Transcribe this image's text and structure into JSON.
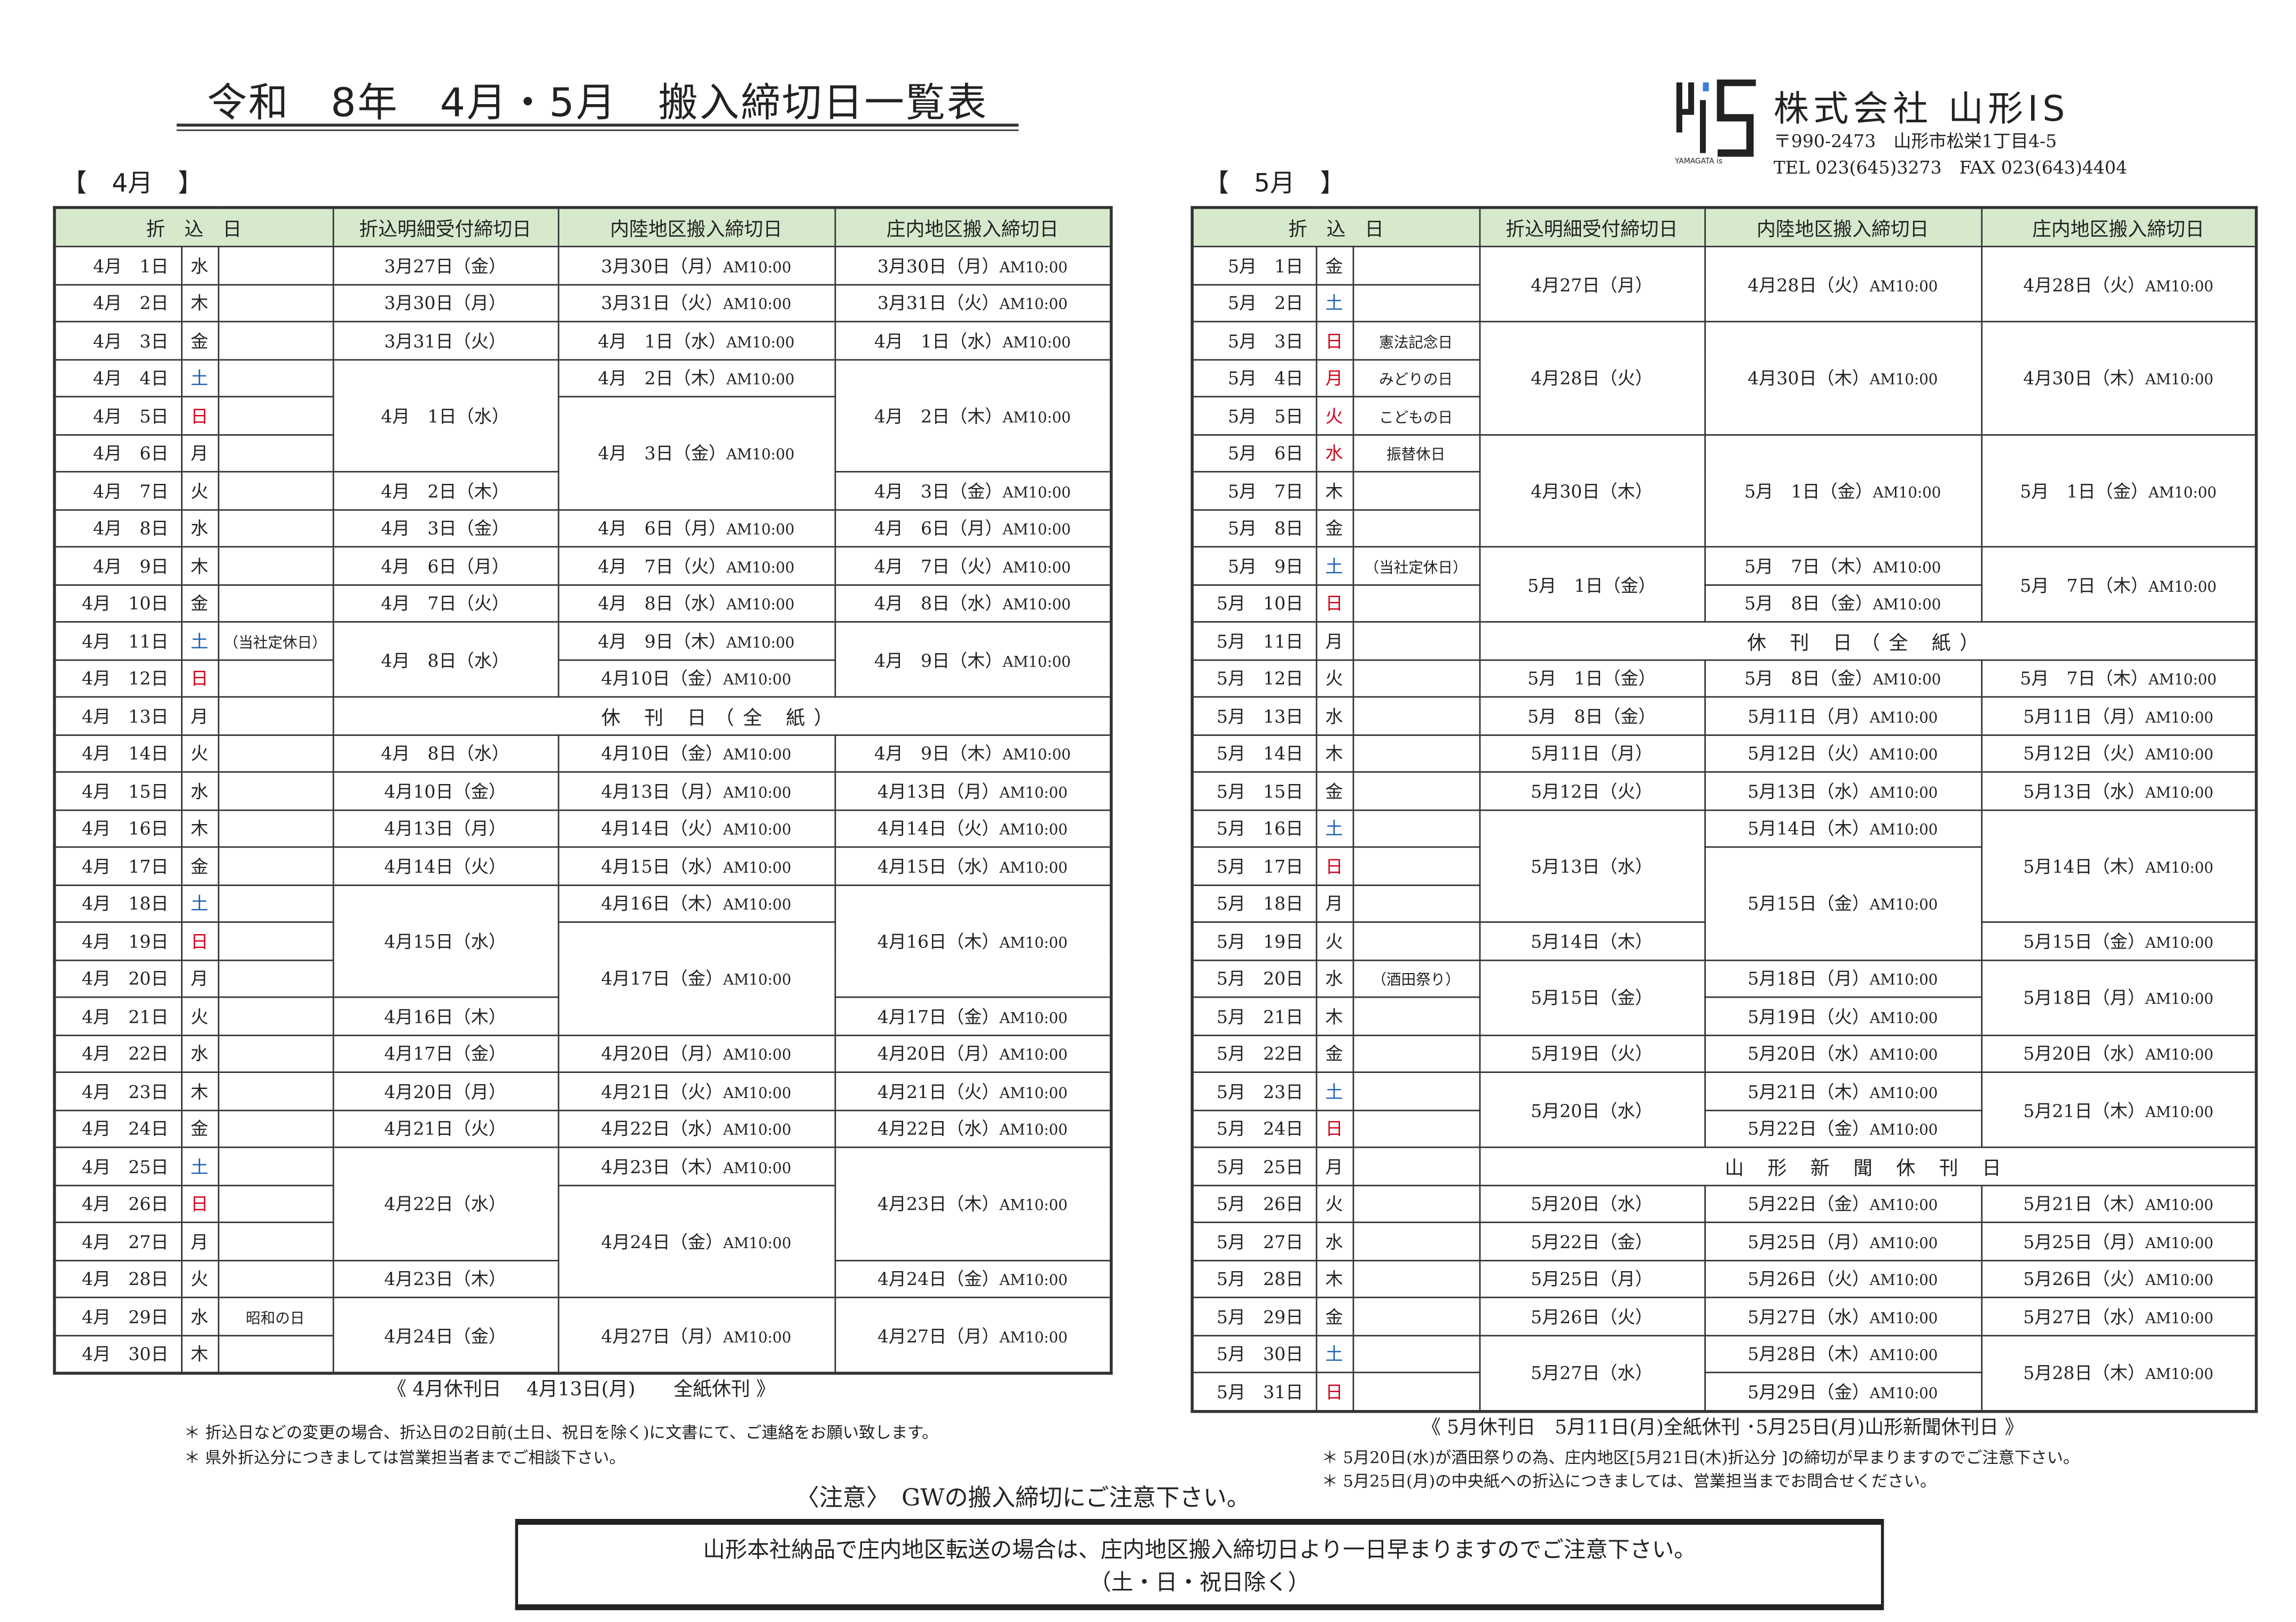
{
  "title": "令和　8年　4月・5月　搬入締切日一覧表",
  "company": {
    "name": "株式会社 山形IS",
    "logo_text": "YAMAGATA is",
    "address": "〒990-2473　山形市松栄1丁目4-5",
    "tel": "TEL 023(645)3273　FAX 023(643)4404"
  },
  "colors": {
    "header_bg": "#d6e9cc",
    "saturday": "#1a5fb4",
    "holiday": "#d0021b"
  },
  "headers": [
    "折　込　日",
    "折込明細受付締切日",
    "内陸地区搬入締切日",
    "庄内地区搬入締切日"
  ],
  "time": "AM10:00",
  "april": {
    "label": "【　4月　】",
    "rows": [
      {
        "d": "4月　1日",
        "w": "水",
        "r": "3月27日（金）",
        "i": "3月30日（月）",
        "s": "3月30日（月）"
      },
      {
        "d": "4月　2日",
        "w": "木",
        "r": "3月30日（月）",
        "i": "3月31日（火）",
        "s": "3月31日（火）"
      },
      {
        "d": "4月　3日",
        "w": "金",
        "r": "3月31日（火）",
        "i": "4月　1日（水）",
        "s": "4月　1日（水）"
      },
      {
        "d": "4月　4日",
        "w": "土",
        "c": "sat",
        "r": [
          "4月　1日（水）",
          3
        ],
        "i": "4月　2日（木）",
        "s": [
          "4月　2日（木）",
          3
        ]
      },
      {
        "d": "4月　5日",
        "w": "日",
        "c": "hol",
        "i": [
          "4月　3日（金）",
          3
        ]
      },
      {
        "d": "4月　6日",
        "w": "月"
      },
      {
        "d": "4月　7日",
        "w": "火",
        "r": "4月　2日（木）",
        "s": "4月　3日（金）"
      },
      {
        "d": "4月　8日",
        "w": "水",
        "r": "4月　3日（金）",
        "i": "4月　6日（月）",
        "s": "4月　6日（月）"
      },
      {
        "d": "4月　9日",
        "w": "木",
        "r": "4月　6日（月）",
        "i": "4月　7日（火）",
        "s": "4月　7日（火）"
      },
      {
        "d": "4月　10日",
        "w": "金",
        "r": "4月　7日（火）",
        "i": "4月　8日（水）",
        "s": "4月　8日（水）"
      },
      {
        "d": "4月　11日",
        "w": "土",
        "c": "sat",
        "n": "（当社定休日）",
        "r": [
          "4月　8日（水）",
          2
        ],
        "i": "4月　9日（木）",
        "s": [
          "4月　9日（木）",
          2
        ]
      },
      {
        "d": "4月　12日",
        "w": "日",
        "c": "hol",
        "i": "4月10日（金）"
      },
      {
        "d": "4月　13日",
        "w": "月",
        "x": "休 刊 日（全 紙）"
      },
      {
        "d": "4月　14日",
        "w": "火",
        "r": "4月　8日（水）",
        "i": "4月10日（金）",
        "s": "4月　9日（木）"
      },
      {
        "d": "4月　15日",
        "w": "水",
        "r": "4月10日（金）",
        "i": "4月13日（月）",
        "s": "4月13日（月）"
      },
      {
        "d": "4月　16日",
        "w": "木",
        "r": "4月13日（月）",
        "i": "4月14日（火）",
        "s": "4月14日（火）"
      },
      {
        "d": "4月　17日",
        "w": "金",
        "r": "4月14日（火）",
        "i": "4月15日（水）",
        "s": "4月15日（水）"
      },
      {
        "d": "4月　18日",
        "w": "土",
        "c": "sat",
        "r": [
          "4月15日（水）",
          3
        ],
        "i": "4月16日（木）",
        "s": [
          "4月16日（木）",
          3
        ]
      },
      {
        "d": "4月　19日",
        "w": "日",
        "c": "hol",
        "i": [
          "4月17日（金）",
          3
        ]
      },
      {
        "d": "4月　20日",
        "w": "月"
      },
      {
        "d": "4月　21日",
        "w": "火",
        "r": "4月16日（木）",
        "s": "4月17日（金）"
      },
      {
        "d": "4月　22日",
        "w": "水",
        "r": "4月17日（金）",
        "i": "4月20日（月）",
        "s": "4月20日（月）"
      },
      {
        "d": "4月　23日",
        "w": "木",
        "r": "4月20日（月）",
        "i": "4月21日（火）",
        "s": "4月21日（火）"
      },
      {
        "d": "4月　24日",
        "w": "金",
        "r": "4月21日（火）",
        "i": "4月22日（水）",
        "s": "4月22日（水）"
      },
      {
        "d": "4月　25日",
        "w": "土",
        "c": "sat",
        "r": [
          "4月22日（水）",
          3
        ],
        "i": "4月23日（木）",
        "s": [
          "4月23日（木）",
          3
        ]
      },
      {
        "d": "4月　26日",
        "w": "日",
        "c": "hol",
        "i": [
          "4月24日（金）",
          3
        ]
      },
      {
        "d": "4月　27日",
        "w": "月"
      },
      {
        "d": "4月　28日",
        "w": "火",
        "r": "4月23日（木）",
        "s": "4月24日（金）"
      },
      {
        "d": "4月　29日",
        "w": "水",
        "n": "昭和の日",
        "r": [
          "4月24日（金）",
          2
        ],
        "i": [
          "4月27日（月）",
          2
        ],
        "s": [
          "4月27日（月）",
          2
        ]
      },
      {
        "d": "4月　30日",
        "w": "木"
      }
    ],
    "footer": "《 4月休刊日　 4月13日(月)　　全紙休刊 》",
    "notes": [
      "＊ 折込日などの変更の場合、折込日の2日前(土日、祝日を除く)に文書にて、ご連絡をお願い致します。",
      "＊ 県外折込分につきましては営業担当者までご相談下さい。"
    ]
  },
  "may": {
    "label": "【　5月　】",
    "rows": [
      {
        "d": "5月　1日",
        "w": "金",
        "r": [
          "4月27日（月）",
          2
        ],
        "i": [
          "4月28日（火）",
          2
        ],
        "s": [
          "4月28日（火）",
          2
        ]
      },
      {
        "d": "5月　2日",
        "w": "土",
        "c": "sat"
      },
      {
        "d": "5月　3日",
        "w": "日",
        "c": "hol",
        "n": "憲法記念日",
        "r": [
          "4月28日（火）",
          3
        ],
        "i": [
          "4月30日（木）",
          3
        ],
        "s": [
          "4月30日（木）",
          3
        ]
      },
      {
        "d": "5月　4日",
        "w": "月",
        "c": "hol",
        "n": "みどりの日"
      },
      {
        "d": "5月　5日",
        "w": "火",
        "c": "hol",
        "n": "こどもの日"
      },
      {
        "d": "5月　6日",
        "w": "水",
        "c": "hol",
        "n": "振替休日",
        "r": [
          "4月30日（木）",
          3
        ],
        "i": [
          "5月　1日（金）",
          3
        ],
        "s": [
          "5月　1日（金）",
          3
        ]
      },
      {
        "d": "5月　7日",
        "w": "木"
      },
      {
        "d": "5月　8日",
        "w": "金"
      },
      {
        "d": "5月　9日",
        "w": "土",
        "c": "sat",
        "n": "（当社定休日）",
        "r": [
          "5月　1日（金）",
          2
        ],
        "i": "5月　7日（木）",
        "s": [
          "5月　7日（木）",
          2
        ]
      },
      {
        "d": "5月　10日",
        "w": "日",
        "c": "hol",
        "i": "5月　8日（金）"
      },
      {
        "d": "5月　11日",
        "w": "月",
        "x": "休 刊 日（全 紙）"
      },
      {
        "d": "5月　12日",
        "w": "火",
        "r": "5月　1日（金）",
        "i": "5月　8日（金）",
        "s": "5月　7日（木）"
      },
      {
        "d": "5月　13日",
        "w": "水",
        "r": "5月　8日（金）",
        "i": "5月11日（月）",
        "s": "5月11日（月）"
      },
      {
        "d": "5月　14日",
        "w": "木",
        "r": "5月11日（月）",
        "i": "5月12日（火）",
        "s": "5月12日（火）"
      },
      {
        "d": "5月　15日",
        "w": "金",
        "r": "5月12日（火）",
        "i": "5月13日（水）",
        "s": "5月13日（水）"
      },
      {
        "d": "5月　16日",
        "w": "土",
        "c": "sat",
        "r": [
          "5月13日（水）",
          3
        ],
        "i": "5月14日（木）",
        "s": [
          "5月14日（木）",
          3
        ]
      },
      {
        "d": "5月　17日",
        "w": "日",
        "c": "hol",
        "i": [
          "5月15日（金）",
          3
        ]
      },
      {
        "d": "5月　18日",
        "w": "月"
      },
      {
        "d": "5月　19日",
        "w": "火",
        "r": "5月14日（木）",
        "s": "5月15日（金）"
      },
      {
        "d": "5月　20日",
        "w": "水",
        "n": "（酒田祭り）",
        "r": [
          "5月15日（金）",
          2
        ],
        "i": "5月18日（月）",
        "s": [
          "5月18日（月）",
          2
        ]
      },
      {
        "d": "5月　21日",
        "w": "木",
        "i": "5月19日（火）"
      },
      {
        "d": "5月　22日",
        "w": "金",
        "r": "5月19日（火）",
        "i": "5月20日（水）",
        "s": "5月20日（水）"
      },
      {
        "d": "5月　23日",
        "w": "土",
        "c": "sat",
        "r": [
          "5月20日（水）",
          2
        ],
        "i": "5月21日（木）",
        "s": [
          "5月21日（木）",
          2
        ]
      },
      {
        "d": "5月　24日",
        "w": "日",
        "c": "hol",
        "i": "5月22日（金）"
      },
      {
        "d": "5月　25日",
        "w": "月",
        "x": "山 形 新 聞 休 刊 日"
      },
      {
        "d": "5月　26日",
        "w": "火",
        "r": "5月20日（水）",
        "i": "5月22日（金）",
        "s": "5月21日（木）"
      },
      {
        "d": "5月　27日",
        "w": "水",
        "r": "5月22日（金）",
        "i": "5月25日（月）",
        "s": "5月25日（月）"
      },
      {
        "d": "5月　28日",
        "w": "木",
        "r": "5月25日（月）",
        "i": "5月26日（火）",
        "s": "5月26日（火）"
      },
      {
        "d": "5月　29日",
        "w": "金",
        "r": "5月26日（火）",
        "i": "5月27日（水）",
        "s": "5月27日（水）"
      },
      {
        "d": "5月　30日",
        "w": "土",
        "c": "sat",
        "r": [
          "5月27日（水）",
          2
        ],
        "i": "5月28日（木）",
        "s": [
          "5月28日（木）",
          2
        ]
      },
      {
        "d": "5月　31日",
        "w": "日",
        "c": "hol",
        "i": "5月29日（金）"
      }
    ],
    "footer": "《 5月休刊日　5月11日(月)全紙休刊 ･5月25日(月)山形新聞休刊日 》",
    "notes": [
      "＊ 5月20日(水)が酒田祭りの為、庄内地区[5月21日(木)折込分 ]の締切が早まりますのでご注意下さい。",
      "＊ 5月25日(月)の中央紙への折込につきましては、営業担当までお問合せください。"
    ]
  },
  "caution": "〈注意〉　GWの搬入締切にご注意下さい。",
  "box": {
    "line1": "山形本社納品で庄内地区転送の場合は、庄内地区搬入締切日より一日早まりますのでご注意下さい。",
    "line2": "（土・日・祝日除く）"
  }
}
